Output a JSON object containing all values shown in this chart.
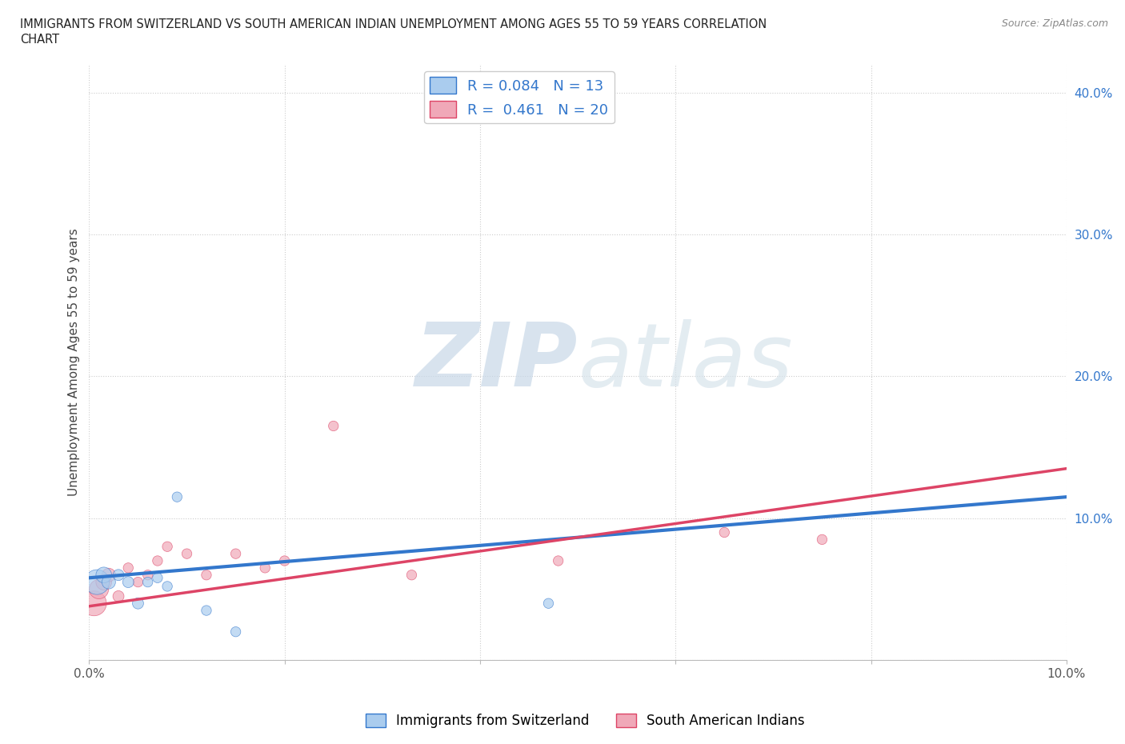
{
  "title_line1": "IMMIGRANTS FROM SWITZERLAND VS SOUTH AMERICAN INDIAN UNEMPLOYMENT AMONG AGES 55 TO 59 YEARS CORRELATION",
  "title_line2": "CHART",
  "source": "Source: ZipAtlas.com",
  "ylabel": "Unemployment Among Ages 55 to 59 years",
  "xlim": [
    0.0,
    0.1
  ],
  "ylim": [
    0.0,
    0.42
  ],
  "xticks": [
    0.0,
    0.02,
    0.04,
    0.06,
    0.08,
    0.1
  ],
  "yticks": [
    0.0,
    0.1,
    0.2,
    0.3,
    0.4
  ],
  "ytick_labels": [
    "",
    "10.0%",
    "20.0%",
    "30.0%",
    "40.0%"
  ],
  "xtick_labels": [
    "0.0%",
    "",
    "",
    "",
    "",
    "10.0%"
  ],
  "watermark_zip": "ZIP",
  "watermark_atlas": "atlas",
  "switzerland_R": 0.084,
  "switzerland_N": 13,
  "sa_indian_R": 0.461,
  "sa_indian_N": 20,
  "switzerland_color": "#aaccee",
  "sa_indian_color": "#f0a8b8",
  "switzerland_line_color": "#3377cc",
  "sa_indian_line_color": "#dd4466",
  "legend_label_1": "Immigrants from Switzerland",
  "legend_label_2": "South American Indians",
  "switzerland_x": [
    0.0008,
    0.0015,
    0.002,
    0.003,
    0.004,
    0.005,
    0.006,
    0.007,
    0.008,
    0.009,
    0.012,
    0.015,
    0.047
  ],
  "switzerland_y": [
    0.055,
    0.06,
    0.055,
    0.06,
    0.055,
    0.04,
    0.055,
    0.058,
    0.052,
    0.115,
    0.035,
    0.02,
    0.04
  ],
  "switzerland_sizes": [
    500,
    200,
    150,
    100,
    100,
    100,
    80,
    80,
    80,
    80,
    80,
    80,
    80
  ],
  "sa_indian_x": [
    0.0005,
    0.001,
    0.0015,
    0.002,
    0.003,
    0.004,
    0.005,
    0.006,
    0.007,
    0.008,
    0.01,
    0.012,
    0.015,
    0.018,
    0.02,
    0.025,
    0.033,
    0.048,
    0.065,
    0.075
  ],
  "sa_indian_y": [
    0.04,
    0.05,
    0.055,
    0.06,
    0.045,
    0.065,
    0.055,
    0.06,
    0.07,
    0.08,
    0.075,
    0.06,
    0.075,
    0.065,
    0.07,
    0.165,
    0.06,
    0.07,
    0.09,
    0.085
  ],
  "sa_indian_sizes": [
    500,
    300,
    200,
    150,
    100,
    80,
    80,
    80,
    80,
    80,
    80,
    80,
    80,
    80,
    80,
    80,
    80,
    80,
    80,
    80
  ],
  "background_color": "#ffffff",
  "grid_color": "#cccccc",
  "sw_trend_x0": 0.0,
  "sw_trend_y0": 0.058,
  "sw_trend_x1": 0.1,
  "sw_trend_y1": 0.115,
  "sa_trend_x0": 0.0,
  "sa_trend_y0": 0.038,
  "sa_trend_x1": 0.1,
  "sa_trend_y1": 0.135
}
